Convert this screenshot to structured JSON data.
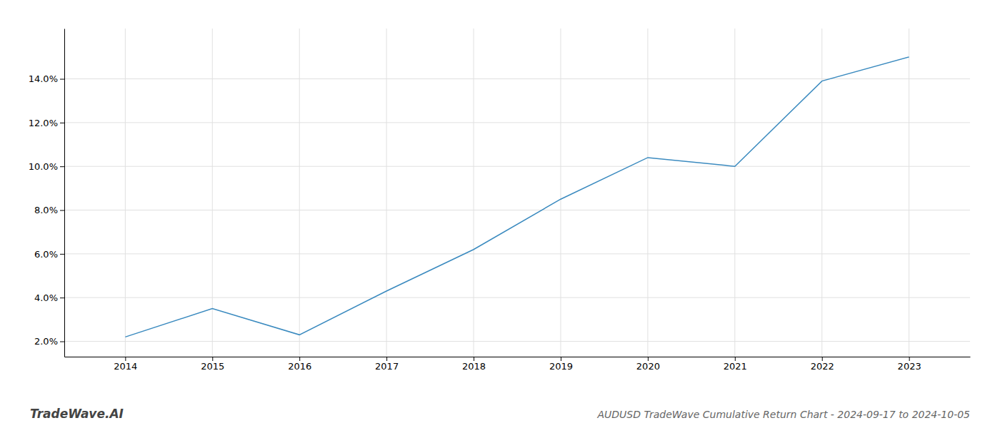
{
  "chart_data": {
    "type": "line",
    "title": "AUDUSD TradeWave Cumulative Return Chart - 2024-09-17 to 2024-10-05",
    "annotations": [
      "TradeWave.AI"
    ],
    "x": [
      2014,
      2015,
      2016,
      2017,
      2018,
      2019,
      2020,
      2021,
      2022,
      2023
    ],
    "values": [
      0.022,
      0.035,
      0.023,
      0.043,
      0.062,
      0.085,
      0.104,
      0.1,
      0.139,
      0.15
    ],
    "color": "#3a8abf",
    "xlim": [
      2013.3,
      2023.7
    ],
    "xticks": [
      2014,
      2015,
      2016,
      2017,
      2018,
      2019,
      2020,
      2021,
      2022,
      2023
    ],
    "ylim": [
      0.013,
      0.163
    ],
    "yticks": [
      {
        "value": 0.02,
        "label": "2.0%"
      },
      {
        "value": 0.04,
        "label": "4.0%"
      },
      {
        "value": 0.06,
        "label": "6.0%"
      },
      {
        "value": 0.08,
        "label": "8.0%"
      },
      {
        "value": 0.1,
        "label": "10.0%"
      },
      {
        "value": 0.12,
        "label": "12.0%"
      },
      {
        "value": 0.14,
        "label": "14.0%"
      }
    ],
    "grid": true
  }
}
